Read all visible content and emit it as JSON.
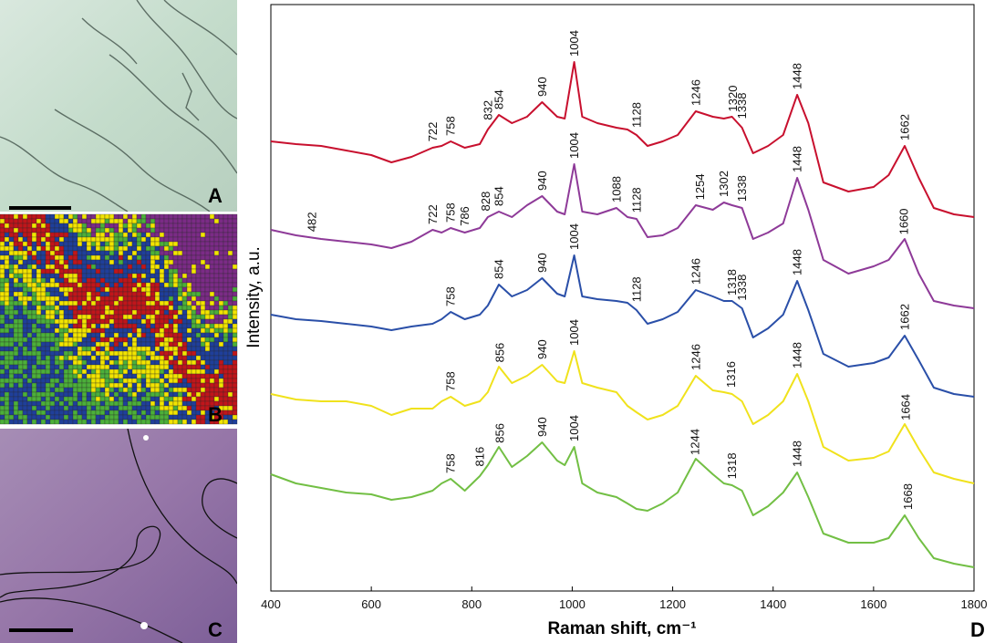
{
  "panel_labels": [
    "A",
    "B",
    "C",
    "D"
  ],
  "chart_data": {
    "type": "line",
    "ylabel": "Intensity, a.u.",
    "xlabel": "Raman shift, cm⁻¹",
    "xlim": [
      400,
      1800
    ],
    "xticks": [
      400,
      600,
      800,
      1000,
      1200,
      1400,
      1600,
      1800
    ],
    "ylim": [
      0,
      643
    ],
    "x": [
      400,
      450,
      500,
      550,
      600,
      640,
      680,
      722,
      740,
      758,
      786,
      816,
      832,
      854,
      880,
      910,
      940,
      970,
      985,
      1004,
      1020,
      1050,
      1088,
      1110,
      1128,
      1150,
      1180,
      1210,
      1246,
      1280,
      1302,
      1318,
      1338,
      1360,
      1390,
      1420,
      1448,
      1470,
      1500,
      1550,
      1600,
      1630,
      1662,
      1690,
      1720,
      1760,
      1800
    ],
    "series": [
      {
        "color": "#c8102e",
        "values": [
          493,
          490,
          488,
          483,
          478,
          470,
          476,
          486,
          488,
          493,
          486,
          490,
          506,
          522,
          513,
          520,
          536,
          520,
          518,
          580,
          520,
          513,
          508,
          506,
          500,
          488,
          493,
          500,
          526,
          520,
          518,
          520,
          508,
          480,
          488,
          500,
          544,
          513,
          448,
          438,
          443,
          456,
          488,
          453,
          420,
          413,
          410
        ],
        "peaks": [
          722,
          758,
          832,
          854,
          940,
          1004,
          1128,
          1246,
          1320,
          1338,
          1448,
          1662
        ]
      },
      {
        "color": "#8e3a98",
        "values": [
          396,
          390,
          386,
          383,
          380,
          376,
          383,
          396,
          393,
          398,
          393,
          398,
          410,
          416,
          410,
          423,
          433,
          416,
          413,
          468,
          416,
          413,
          420,
          410,
          408,
          388,
          390,
          398,
          423,
          418,
          426,
          423,
          420,
          386,
          393,
          403,
          453,
          418,
          363,
          348,
          356,
          363,
          386,
          348,
          318,
          313,
          310
        ],
        "peaks": [
          482,
          722,
          758,
          786,
          828,
          854,
          940,
          1004,
          1088,
          1128,
          1254,
          1302,
          1338,
          1448,
          1660
        ]
      },
      {
        "color": "#2a4fa8",
        "values": [
          303,
          298,
          296,
          293,
          290,
          286,
          290,
          293,
          298,
          306,
          298,
          303,
          313,
          336,
          323,
          330,
          343,
          326,
          323,
          368,
          323,
          320,
          318,
          316,
          308,
          293,
          298,
          306,
          330,
          323,
          318,
          318,
          310,
          278,
          288,
          303,
          340,
          308,
          260,
          246,
          250,
          256,
          280,
          253,
          223,
          216,
          213
        ],
        "peaks": [
          758,
          854,
          940,
          1004,
          1128,
          1246,
          1318,
          1338,
          1448,
          1662
        ]
      },
      {
        "color": "#f0e21c",
        "values": [
          216,
          210,
          208,
          208,
          203,
          193,
          200,
          200,
          208,
          213,
          203,
          208,
          218,
          246,
          228,
          236,
          248,
          230,
          228,
          263,
          228,
          223,
          218,
          203,
          196,
          188,
          193,
          203,
          236,
          220,
          218,
          216,
          208,
          183,
          193,
          208,
          238,
          208,
          158,
          143,
          146,
          153,
          183,
          156,
          130,
          123,
          118
        ],
        "peaks": [
          758,
          856,
          940,
          1004,
          1246,
          1316,
          1448,
          1664
        ]
      },
      {
        "color": "#72bf44",
        "values": [
          128,
          118,
          113,
          108,
          106,
          100,
          103,
          110,
          118,
          123,
          110,
          126,
          138,
          158,
          136,
          148,
          163,
          143,
          138,
          158,
          118,
          108,
          103,
          96,
          90,
          88,
          96,
          108,
          145,
          128,
          118,
          116,
          110,
          83,
          93,
          108,
          130,
          103,
          63,
          53,
          53,
          58,
          83,
          58,
          36,
          30,
          26
        ],
        "peaks": [
          758,
          816,
          856,
          940,
          1004,
          1244,
          1318,
          1448,
          1668
        ]
      }
    ]
  }
}
